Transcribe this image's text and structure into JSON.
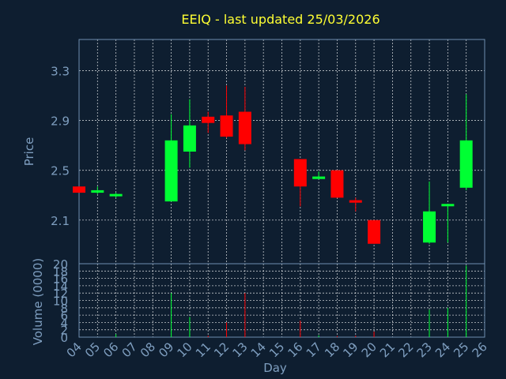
{
  "colors": {
    "background": "#0e1e30",
    "title": "#ffff33",
    "axis_text": "#7f9fc0",
    "grid": "#ffffff",
    "frame": "#6f8fb0",
    "up": "#00ff33",
    "down": "#ff0000"
  },
  "chart_data": [
    {
      "type": "candlestick",
      "title": "EEIQ - last updated 25/03/2026",
      "xlabel": "",
      "ylabel": "Price",
      "ylim": [
        1.75,
        3.55
      ],
      "yticks": [
        "2.1",
        "2.5",
        "2.9",
        "3.3"
      ],
      "grid": true,
      "candles": [
        {
          "day": "04",
          "open": 2.37,
          "close": 2.32,
          "high": 2.37,
          "low": 2.32
        },
        {
          "day": "05",
          "open": 2.32,
          "close": 2.34,
          "high": 2.37,
          "low": 2.31
        },
        {
          "day": "06",
          "open": 2.3,
          "close": 2.31,
          "high": 2.32,
          "low": 2.28
        },
        {
          "day": "09",
          "open": 2.25,
          "close": 2.74,
          "high": 2.95,
          "low": 2.25
        },
        {
          "day": "10",
          "open": 2.65,
          "close": 2.86,
          "high": 3.07,
          "low": 2.52
        },
        {
          "day": "11",
          "open": 2.93,
          "close": 2.88,
          "high": 2.97,
          "low": 2.8
        },
        {
          "day": "12",
          "open": 2.94,
          "close": 2.77,
          "high": 3.18,
          "low": 2.76
        },
        {
          "day": "13",
          "open": 2.97,
          "close": 2.71,
          "high": 3.17,
          "low": 2.66
        },
        {
          "day": "16",
          "open": 2.59,
          "close": 2.37,
          "high": 2.59,
          "low": 2.21
        },
        {
          "day": "17",
          "open": 2.43,
          "close": 2.45,
          "high": 2.49,
          "low": 2.43
        },
        {
          "day": "18",
          "open": 2.5,
          "close": 2.28,
          "high": 2.5,
          "low": 2.28
        },
        {
          "day": "19",
          "open": 2.26,
          "close": 2.24,
          "high": 2.28,
          "low": 2.17
        },
        {
          "day": "20",
          "open": 2.1,
          "close": 1.91,
          "high": 2.1,
          "low": 1.91
        },
        {
          "day": "23",
          "open": 1.92,
          "close": 2.17,
          "high": 2.41,
          "low": 1.91
        },
        {
          "day": "24",
          "open": 2.22,
          "close": 2.23,
          "high": 2.23,
          "low": 1.92
        },
        {
          "day": "25",
          "open": 2.36,
          "close": 2.74,
          "high": 3.11,
          "low": 2.34
        }
      ]
    },
    {
      "type": "bar",
      "title": "",
      "xlabel": "Day",
      "ylabel": "Volume (0000)",
      "ylim": [
        0,
        20
      ],
      "yticks": [
        "0",
        "2",
        "4",
        "6",
        "8",
        "10",
        "12",
        "14",
        "16",
        "18",
        "20"
      ],
      "grid": true,
      "categories": [
        "04",
        "05",
        "06",
        "07",
        "08",
        "09",
        "10",
        "11",
        "12",
        "13",
        "14",
        "15",
        "16",
        "17",
        "18",
        "19",
        "20",
        "21",
        "22",
        "23",
        "24",
        "25",
        "26"
      ],
      "values": [
        0,
        0,
        0.8,
        0,
        0,
        12,
        5.5,
        0.4,
        4,
        12,
        0,
        0,
        4.5,
        0.5,
        0.3,
        0.4,
        1.5,
        0,
        0,
        7.5,
        8,
        19.5,
        0
      ],
      "bar_colors": [
        "none",
        "none",
        "up",
        "none",
        "none",
        "up",
        "up",
        "down",
        "down",
        "down",
        "none",
        "none",
        "down",
        "up",
        "down",
        "down",
        "down",
        "none",
        "none",
        "up",
        "up",
        "up",
        "none"
      ]
    }
  ]
}
